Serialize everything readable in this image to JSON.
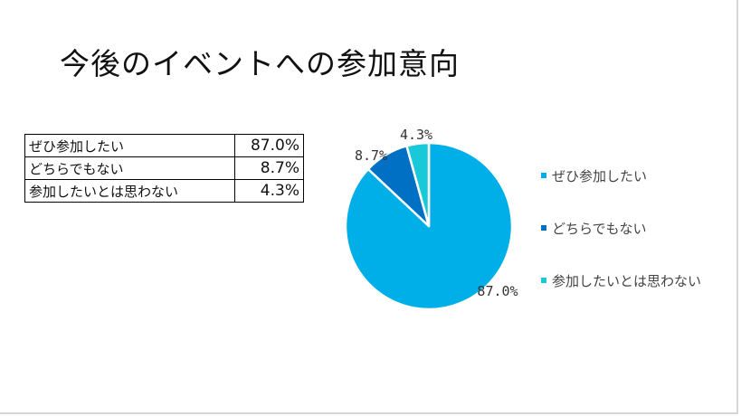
{
  "title": "今後のイベントへの参加意向",
  "table": {
    "rows": [
      {
        "category": "ぜひ参加したい",
        "value": "87.0%"
      },
      {
        "category": "どちらでもない",
        "value": "8.7%"
      },
      {
        "category": "参加したいとは思わない",
        "value": "4.3%"
      }
    ]
  },
  "chart_data": {
    "type": "pie",
    "categories": [
      "ぜひ参加したい",
      "どちらでもない",
      "参加したいとは思わない"
    ],
    "values": [
      87.0,
      8.7,
      4.3
    ],
    "data_labels": [
      "87.0%",
      "8.7%",
      "4.3%"
    ],
    "colors": [
      "#00aee8",
      "#0070c4",
      "#19c9d9"
    ],
    "legend_position": "right"
  }
}
